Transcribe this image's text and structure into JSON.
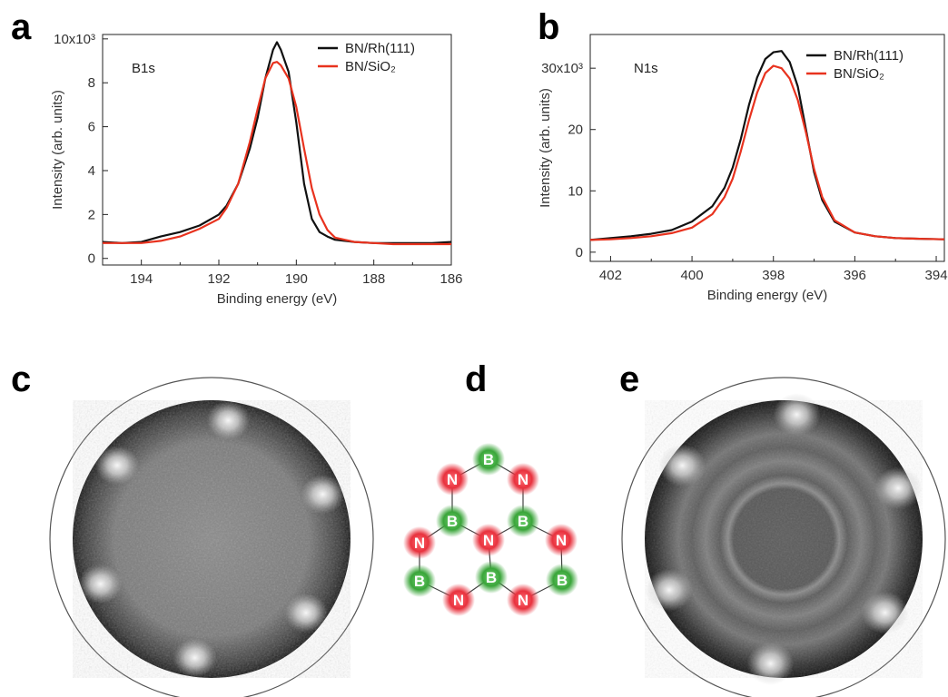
{
  "panel_letters": [
    "a",
    "b",
    "c",
    "d",
    "e"
  ],
  "colors": {
    "rh_series": "#111111",
    "sio2_series": "#e8321e",
    "boron": "#3aa53a",
    "nitrogen": "#e8323e",
    "bond": "#444444",
    "circle_outline": "#555555"
  },
  "chart_data": [
    {
      "type": "line",
      "peak_label": "B1s",
      "xlabel": "Binding energy (eV)",
      "ylabel": "Intensity (arb. units)",
      "xlim": [
        195,
        186
      ],
      "x_reversed": true,
      "ylim": [
        -0.3,
        10.2
      ],
      "xticks": [
        194,
        192,
        190,
        188,
        186
      ],
      "xtick_labels": [
        "194",
        "192",
        "190",
        "188",
        "186"
      ],
      "yticks": [
        0,
        2,
        4,
        6,
        8,
        10
      ],
      "ytick_labels": [
        "0",
        "2",
        "4",
        "6",
        "8",
        "10x10³"
      ],
      "legend_position": "top-right",
      "series": [
        {
          "name": "BN/Rh(111)",
          "x": [
            195.0,
            194.5,
            194.0,
            193.5,
            193.0,
            192.5,
            192.0,
            191.8,
            191.5,
            191.2,
            191.0,
            190.8,
            190.6,
            190.5,
            190.4,
            190.2,
            190.0,
            189.8,
            189.6,
            189.4,
            189.2,
            189.0,
            188.5,
            188.0,
            187.5,
            187.0,
            186.5,
            186.0
          ],
          "y": [
            0.75,
            0.7,
            0.75,
            1.0,
            1.2,
            1.5,
            2.0,
            2.4,
            3.4,
            5.0,
            6.4,
            8.2,
            9.5,
            9.85,
            9.5,
            8.5,
            6.2,
            3.4,
            1.8,
            1.2,
            1.0,
            0.85,
            0.75,
            0.7,
            0.7,
            0.7,
            0.7,
            0.75
          ]
        },
        {
          "name": "BN/SiO₂",
          "x": [
            195.0,
            194.5,
            194.0,
            193.5,
            193.0,
            192.5,
            192.0,
            191.8,
            191.5,
            191.2,
            191.0,
            190.8,
            190.6,
            190.5,
            190.4,
            190.2,
            190.0,
            189.8,
            189.6,
            189.4,
            189.2,
            189.0,
            188.5,
            188.0,
            187.5,
            187.0,
            186.5,
            186.0
          ],
          "y": [
            0.7,
            0.7,
            0.7,
            0.8,
            1.0,
            1.35,
            1.8,
            2.3,
            3.4,
            5.3,
            6.8,
            8.2,
            8.9,
            8.95,
            8.8,
            8.2,
            6.9,
            5.0,
            3.2,
            2.0,
            1.3,
            0.95,
            0.75,
            0.7,
            0.65,
            0.65,
            0.65,
            0.65
          ]
        }
      ]
    },
    {
      "type": "line",
      "peak_label": "N1s",
      "xlabel": "Binding energy (eV)",
      "ylabel": "Intensity (arb. units)",
      "xlim": [
        402.5,
        393.8
      ],
      "x_reversed": true,
      "ylim": [
        -1.5,
        35.5
      ],
      "xticks": [
        402,
        400,
        398,
        396,
        394
      ],
      "xtick_labels": [
        "402",
        "400",
        "398",
        "396",
        "394"
      ],
      "yticks": [
        0,
        10,
        20,
        30
      ],
      "ytick_labels": [
        "0",
        "10",
        "20",
        "30x10³"
      ],
      "legend_position": "top-right",
      "series": [
        {
          "name": "BN/Rh(111)",
          "x": [
            402.5,
            402.0,
            401.5,
            401.0,
            400.5,
            400.0,
            399.5,
            399.2,
            399.0,
            398.8,
            398.6,
            398.4,
            398.2,
            398.0,
            397.8,
            397.6,
            397.4,
            397.2,
            397.0,
            396.8,
            396.5,
            396.0,
            395.5,
            395.0,
            394.5,
            393.8
          ],
          "y": [
            2.0,
            2.3,
            2.6,
            3.0,
            3.6,
            5.0,
            7.5,
            10.5,
            13.8,
            18.5,
            24.0,
            28.5,
            31.5,
            32.6,
            32.8,
            31.0,
            27.0,
            20.0,
            13.0,
            8.5,
            5.0,
            3.2,
            2.6,
            2.3,
            2.2,
            2.1
          ]
        },
        {
          "name": "BN/SiO₂",
          "x": [
            402.5,
            402.0,
            401.5,
            401.0,
            400.5,
            400.0,
            399.5,
            399.2,
            399.0,
            398.8,
            398.6,
            398.4,
            398.2,
            398.0,
            397.8,
            397.6,
            397.4,
            397.2,
            397.0,
            396.8,
            396.5,
            396.0,
            395.5,
            395.0,
            394.5,
            393.8
          ],
          "y": [
            2.0,
            2.1,
            2.3,
            2.6,
            3.1,
            4.0,
            6.2,
            9.0,
            12.0,
            16.5,
            21.5,
            26.0,
            29.2,
            30.4,
            30.0,
            28.3,
            24.8,
            19.5,
            13.5,
            9.0,
            5.2,
            3.2,
            2.6,
            2.3,
            2.2,
            2.1
          ]
        }
      ]
    }
  ],
  "lattice": {
    "atoms": [
      {
        "element": "B",
        "label": "B"
      },
      {
        "element": "N",
        "label": "N"
      },
      {
        "element": "N",
        "label": "N"
      },
      {
        "element": "B",
        "label": "B"
      },
      {
        "element": "B",
        "label": "B"
      },
      {
        "element": "N",
        "label": "N"
      },
      {
        "element": "N",
        "label": "N"
      },
      {
        "element": "N",
        "label": "N"
      },
      {
        "element": "B",
        "label": "B"
      },
      {
        "element": "B",
        "label": "B"
      },
      {
        "element": "B",
        "label": "B"
      },
      {
        "element": "N",
        "label": "N"
      },
      {
        "element": "N",
        "label": "N"
      }
    ]
  },
  "diffraction_patterns": [
    {
      "panel": "c",
      "pattern": "sixfold-spots"
    },
    {
      "panel": "e",
      "pattern": "sixfold-spots-with-ring"
    }
  ]
}
